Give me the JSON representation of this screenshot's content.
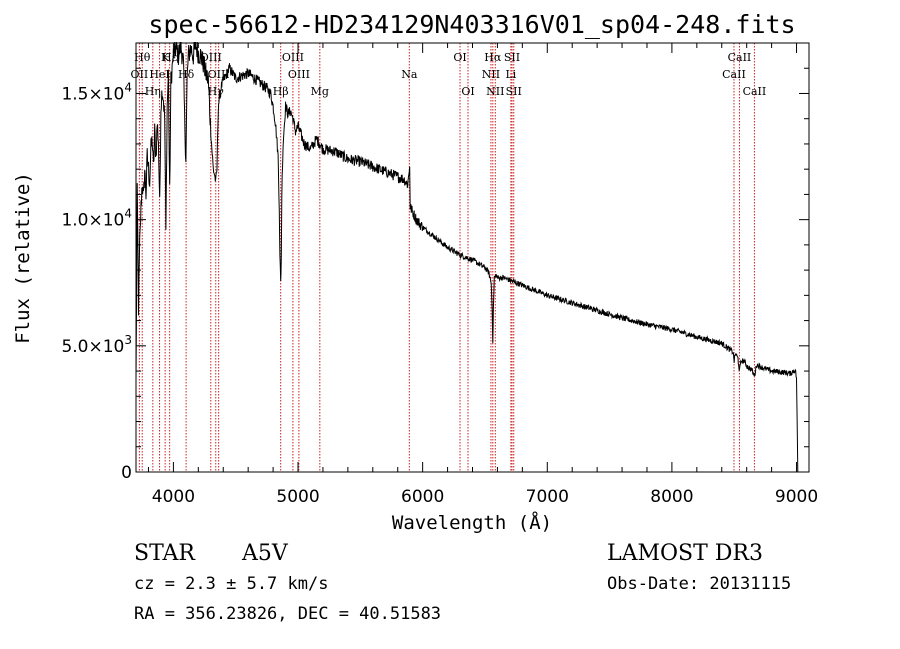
{
  "chart_data": {
    "type": "line",
    "title": "spec-56612-HD234129N403316V01_sp04-248.fits",
    "xlabel": "Wavelength (Å)",
    "ylabel": "Flux (relative)",
    "xlim": [
      3700,
      9100
    ],
    "ylim": [
      0,
      17000
    ],
    "grid": false,
    "x_ticks": [
      {
        "value": 4000,
        "label": "4000"
      },
      {
        "value": 5000,
        "label": "5000"
      },
      {
        "value": 6000,
        "label": "6000"
      },
      {
        "value": 7000,
        "label": "7000"
      },
      {
        "value": 8000,
        "label": "8000"
      },
      {
        "value": 9000,
        "label": "9000"
      }
    ],
    "y_ticks": [
      {
        "value": 0,
        "label": "0",
        "mantissa": "0",
        "exp": ""
      },
      {
        "value": 5000,
        "label": "5.0×10³",
        "mantissa": "5.0×10",
        "exp": "3"
      },
      {
        "value": 10000,
        "label": "1.0×10⁴",
        "mantissa": "1.0×10",
        "exp": "4"
      },
      {
        "value": 15000,
        "label": "1.5×10⁴",
        "mantissa": "1.5×10",
        "exp": "4"
      }
    ],
    "series": [
      {
        "name": "spectrum",
        "color": "#000000",
        "x": [
          3700,
          3710,
          3720,
          3730,
          3740,
          3750,
          3760,
          3770,
          3780,
          3790,
          3800,
          3810,
          3820,
          3830,
          3840,
          3850,
          3860,
          3870,
          3880,
          3890,
          3900,
          3910,
          3920,
          3930,
          3940,
          3950,
          3960,
          3970,
          3980,
          3990,
          4000,
          4020,
          4040,
          4060,
          4080,
          4090,
          4100,
          4110,
          4120,
          4140,
          4160,
          4180,
          4200,
          4220,
          4240,
          4260,
          4280,
          4300,
          4320,
          4330,
          4340,
          4350,
          4360,
          4380,
          4400,
          4450,
          4500,
          4550,
          4600,
          4650,
          4700,
          4750,
          4780,
          4800,
          4820,
          4840,
          4850,
          4855,
          4861,
          4866,
          4870,
          4880,
          4900,
          4920,
          4940,
          4960,
          4980,
          5000,
          5050,
          5100,
          5150,
          5200,
          5300,
          5400,
          5500,
          5600,
          5700,
          5800,
          5850,
          5880,
          5890,
          5896,
          5900,
          5920,
          5950,
          6000,
          6100,
          6200,
          6300,
          6400,
          6500,
          6530,
          6550,
          6558,
          6563,
          6568,
          6575,
          6590,
          6600,
          6650,
          6700,
          6800,
          6900,
          7000,
          7200,
          7400,
          7600,
          7800,
          8000,
          8200,
          8400,
          8490,
          8500,
          8510,
          8530,
          8542,
          8555,
          8580,
          8600,
          8640,
          8662,
          8680,
          8720,
          8800,
          8900,
          8950,
          8990,
          9000,
          9010
        ],
        "values": [
          3500,
          11000,
          6500,
          9000,
          10500,
          11500,
          10800,
          12000,
          11000,
          12500,
          12000,
          11500,
          12800,
          13200,
          12000,
          13500,
          12500,
          13800,
          13200,
          10500,
          14500,
          15200,
          14800,
          14000,
          9500,
          14500,
          15800,
          11000,
          15500,
          16000,
          16500,
          16800,
          16500,
          16900,
          16200,
          14000,
          12500,
          15500,
          16500,
          16800,
          16500,
          16900,
          16600,
          16500,
          16200,
          15800,
          15500,
          13500,
          12000,
          11800,
          11500,
          12000,
          14500,
          15200,
          15500,
          16000,
          15600,
          15700,
          15800,
          15600,
          15400,
          15200,
          15000,
          14500,
          13800,
          12500,
          10500,
          8500,
          7500,
          8500,
          11000,
          13000,
          14500,
          14200,
          14300,
          14000,
          13500,
          13700,
          13000,
          12800,
          13200,
          12800,
          12700,
          12400,
          12300,
          12100,
          11900,
          11700,
          11600,
          11400,
          11800,
          12200,
          10500,
          10300,
          10000,
          9700,
          9300,
          8900,
          8600,
          8400,
          8100,
          7900,
          7500,
          6500,
          5000,
          6500,
          7700,
          7800,
          7700,
          7700,
          7600,
          7400,
          7200,
          7000,
          6700,
          6400,
          6100,
          5850,
          5650,
          5350,
          5100,
          4750,
          4400,
          4700,
          4500,
          4000,
          4400,
          4400,
          4200,
          4050,
          3800,
          4250,
          4150,
          4000,
          3950,
          3900,
          4050,
          3700,
          0
        ]
      }
    ],
    "line_markers": [
      {
        "name": "Hθ",
        "wavelength": 3750,
        "row": 0
      },
      {
        "name": "K",
        "wavelength": 3934,
        "row": 0
      },
      {
        "name": "Hε",
        "wavelength": 3970,
        "row": 0
      },
      {
        "name": "OII",
        "wavelength": 3727,
        "row": 1
      },
      {
        "name": "HeI",
        "wavelength": 3889,
        "row": 1
      },
      {
        "name": "Hη",
        "wavelength": 3835,
        "row": 2
      },
      {
        "name": "Hδ",
        "wavelength": 4102,
        "row": 1
      },
      {
        "name": "OIII",
        "wavelength": 4300,
        "row": 0
      },
      {
        "name": "OIII",
        "wavelength": 4363,
        "row": 1
      },
      {
        "name": "Hγ",
        "wavelength": 4340,
        "row": 2
      },
      {
        "name": "Hβ",
        "wavelength": 4861,
        "row": 2
      },
      {
        "name": "OIII",
        "wavelength": 4959,
        "row": 0
      },
      {
        "name": "OIII",
        "wavelength": 5007,
        "row": 1
      },
      {
        "name": "Mg",
        "wavelength": 5175,
        "row": 2
      },
      {
        "name": "Na",
        "wavelength": 5893,
        "row": 1
      },
      {
        "name": "OI",
        "wavelength": 6300,
        "row": 0
      },
      {
        "name": "OI",
        "wavelength": 6364,
        "row": 2
      },
      {
        "name": "Hα",
        "wavelength": 6563,
        "row": 0
      },
      {
        "name": "NII",
        "wavelength": 6548,
        "row": 1
      },
      {
        "name": "NII",
        "wavelength": 6583,
        "row": 2
      },
      {
        "name": "SII",
        "wavelength": 6717,
        "row": 0
      },
      {
        "name": "Li",
        "wavelength": 6708,
        "row": 1
      },
      {
        "name": "SII",
        "wavelength": 6731,
        "row": 2
      },
      {
        "name": "CaII",
        "wavelength": 8542,
        "row": 0
      },
      {
        "name": "CaII",
        "wavelength": 8498,
        "row": 1
      },
      {
        "name": "CaII",
        "wavelength": 8662,
        "row": 2
      }
    ],
    "marker_color": "#cc2222"
  },
  "info": {
    "object_class": "STAR",
    "subclass": "A5V",
    "survey": "LAMOST DR3",
    "redshift": "cz = 2.3 ± 5.7 km/s",
    "obs_date": "Obs-Date: 20131115",
    "coordinates": "RA = 356.23826, DEC =  40.51583"
  }
}
